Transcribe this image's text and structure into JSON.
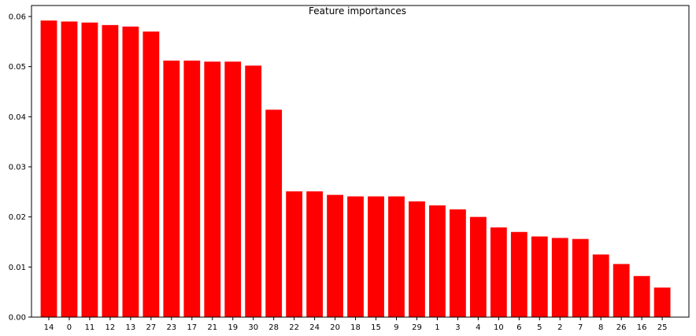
{
  "chart_data": {
    "type": "bar",
    "title": "Feature importances",
    "xlabel": "",
    "ylabel": "",
    "categories": [
      "14",
      "0",
      "11",
      "12",
      "13",
      "27",
      "23",
      "17",
      "21",
      "19",
      "30",
      "28",
      "22",
      "24",
      "20",
      "18",
      "15",
      "9",
      "29",
      "1",
      "3",
      "4",
      "10",
      "6",
      "5",
      "2",
      "7",
      "8",
      "26",
      "16",
      "25"
    ],
    "values": [
      0.0592,
      0.059,
      0.0588,
      0.0583,
      0.058,
      0.057,
      0.0512,
      0.0512,
      0.051,
      0.051,
      0.0502,
      0.0414,
      0.0251,
      0.0251,
      0.0244,
      0.0241,
      0.0241,
      0.0241,
      0.0231,
      0.0223,
      0.0215,
      0.02,
      0.0179,
      0.017,
      0.0161,
      0.0158,
      0.0156,
      0.0125,
      0.0106,
      0.0082,
      0.0059
    ],
    "ylim": [
      0,
      0.0622
    ],
    "yticks": [
      "0.00",
      "0.01",
      "0.02",
      "0.03",
      "0.04",
      "0.05",
      "0.06"
    ],
    "ytick_values": [
      0,
      0.01,
      0.02,
      0.03,
      0.04,
      0.05,
      0.06
    ],
    "bar_color": "#ff0000",
    "grid": false,
    "legend": "none"
  }
}
